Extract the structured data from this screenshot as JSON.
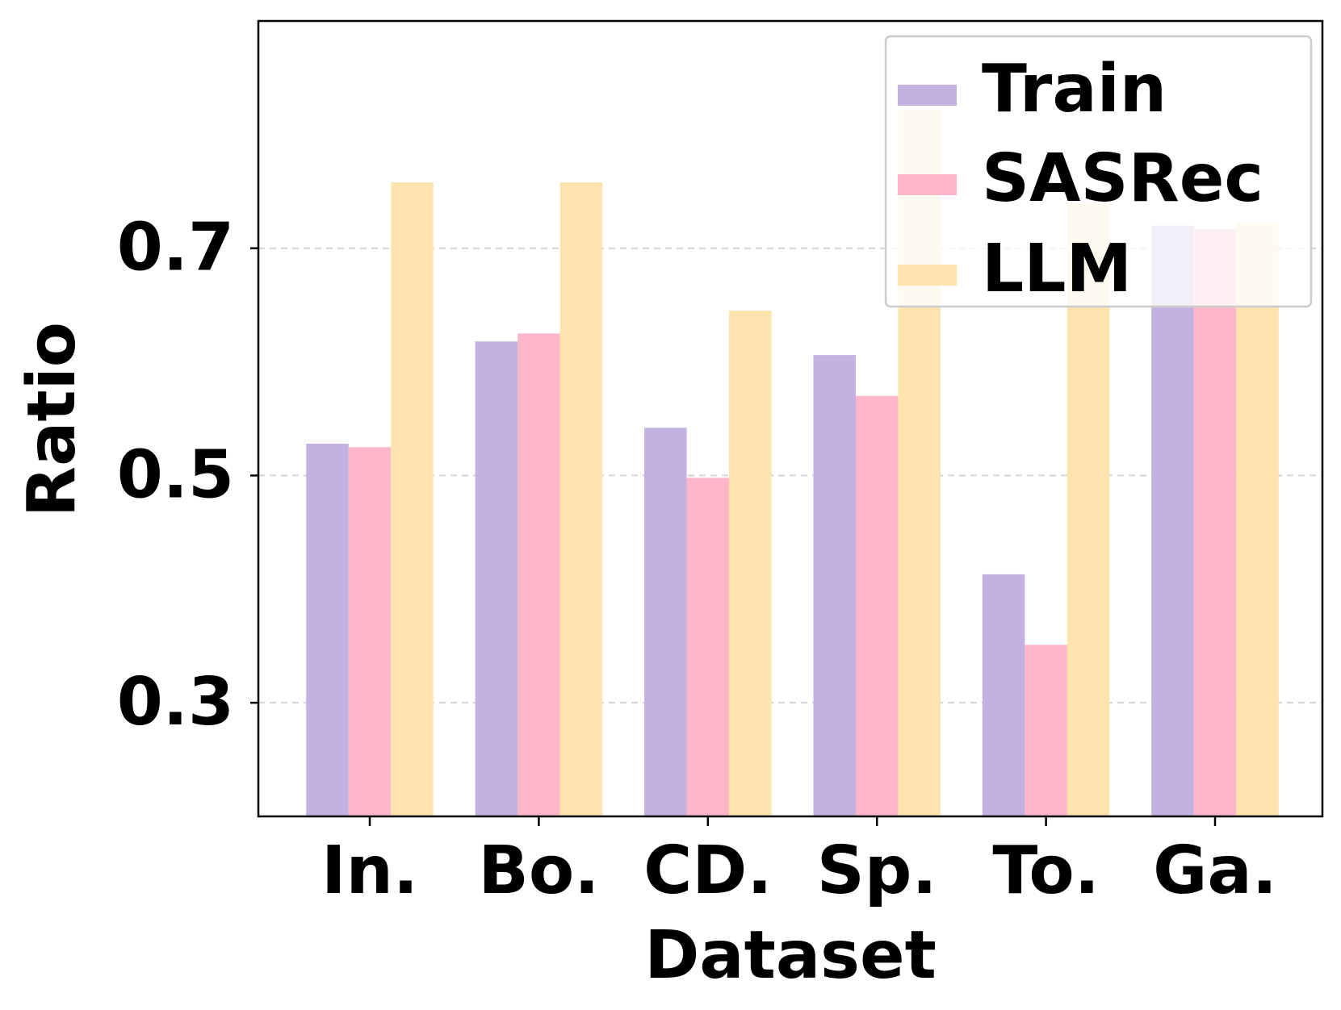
{
  "chart_data": {
    "type": "bar",
    "xlabel": "Dataset",
    "ylabel": "Ratio",
    "categories": [
      "In.",
      "Bo.",
      "CD.",
      "Sp.",
      "To.",
      "Ga."
    ],
    "series": [
      {
        "name": "Train",
        "color": "#C3B1E1",
        "values": [
          0.528,
          0.618,
          0.542,
          0.606,
          0.413,
          0.72
        ]
      },
      {
        "name": "SASRec",
        "color": "#FFB6C8",
        "values": [
          0.525,
          0.625,
          0.498,
          0.57,
          0.351,
          0.717
        ]
      },
      {
        "name": "LLM",
        "color": "#FDE3AE",
        "values": [
          0.758,
          0.758,
          0.645,
          0.822,
          0.74,
          0.722
        ]
      }
    ],
    "ylim": [
      0.2,
      0.9
    ],
    "yticks": [
      "0.3",
      "0.5",
      "0.7"
    ],
    "grid": "horizontal dashed",
    "legend_position": "top-right"
  }
}
